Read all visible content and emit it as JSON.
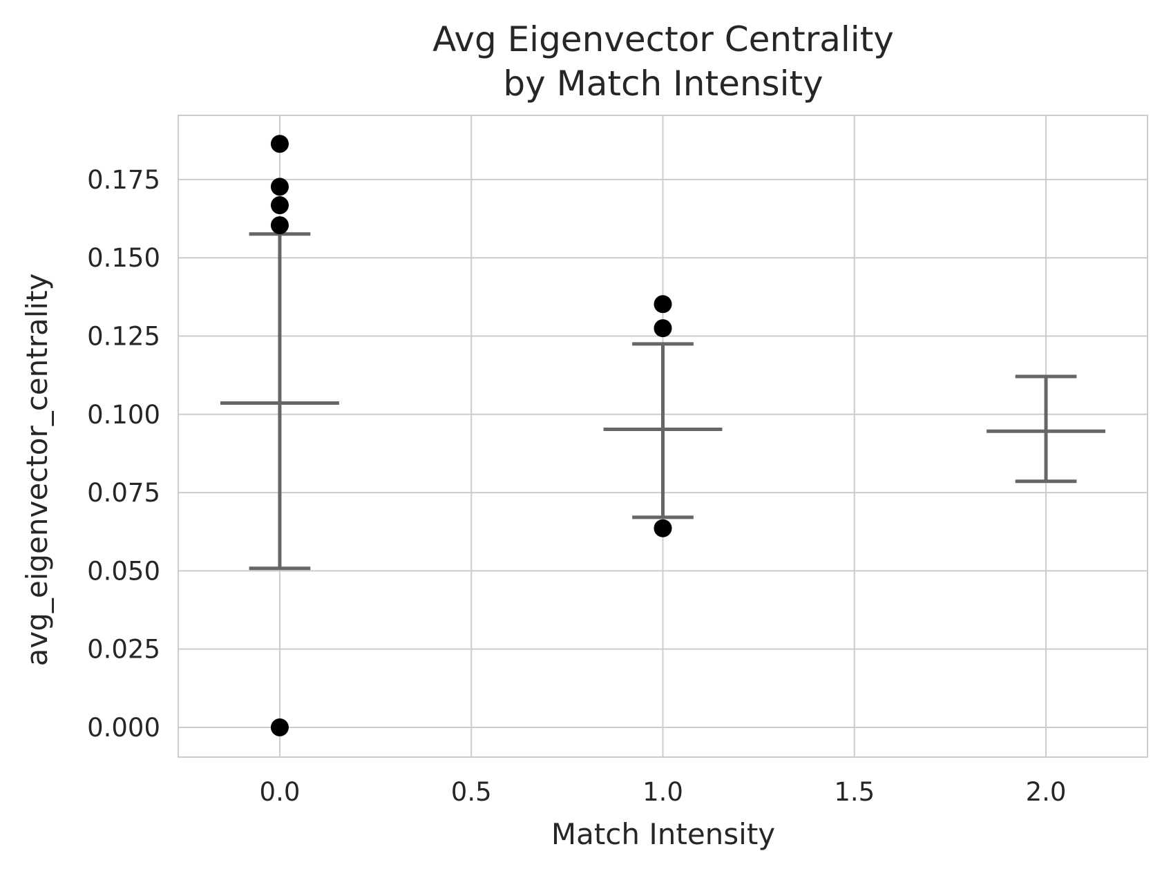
{
  "chart_data": {
    "type": "scatter",
    "title": [
      "Avg Eigenvector Centrality",
      "by Match Intensity"
    ],
    "xlabel": "Match Intensity",
    "ylabel": "avg_eigenvector_centrality",
    "xlim": [
      -0.265,
      2.265
    ],
    "ylim": [
      -0.0095,
      0.1955
    ],
    "xticks": [
      0.0,
      0.5,
      1.0,
      1.5,
      2.0
    ],
    "xtick_labels": [
      "0.0",
      "0.5",
      "1.0",
      "1.5",
      "2.0"
    ],
    "yticks": [
      0.0,
      0.025,
      0.05,
      0.075,
      0.1,
      0.125,
      0.15,
      0.175
    ],
    "ytick_labels": [
      "0.000",
      "0.025",
      "0.050",
      "0.075",
      "0.100",
      "0.125",
      "0.150",
      "0.175"
    ],
    "grid": true,
    "legend": null,
    "boxes": [
      {
        "x": 0,
        "lower_whisker": 0.0508,
        "median": 0.1036,
        "upper_whisker": 0.1576
      },
      {
        "x": 1,
        "lower_whisker": 0.0671,
        "median": 0.0952,
        "upper_whisker": 0.1225
      },
      {
        "x": 2,
        "lower_whisker": 0.0786,
        "median": 0.0946,
        "upper_whisker": 0.1121
      }
    ],
    "outliers": [
      {
        "x": 0,
        "y": 0.1864
      },
      {
        "x": 0,
        "y": 0.1727
      },
      {
        "x": 0,
        "y": 0.1668
      },
      {
        "x": 0,
        "y": 0.1604
      },
      {
        "x": 0,
        "y": 0.0
      },
      {
        "x": 1,
        "y": 0.1352
      },
      {
        "x": 1,
        "y": 0.1275
      },
      {
        "x": 1,
        "y": 0.0636
      }
    ],
    "colors": {
      "background": "#ffffff",
      "grid": "#cccccc",
      "spine": "#cccccc",
      "whisker": "#666666",
      "outlier": "#000000",
      "text": "#262626"
    }
  }
}
